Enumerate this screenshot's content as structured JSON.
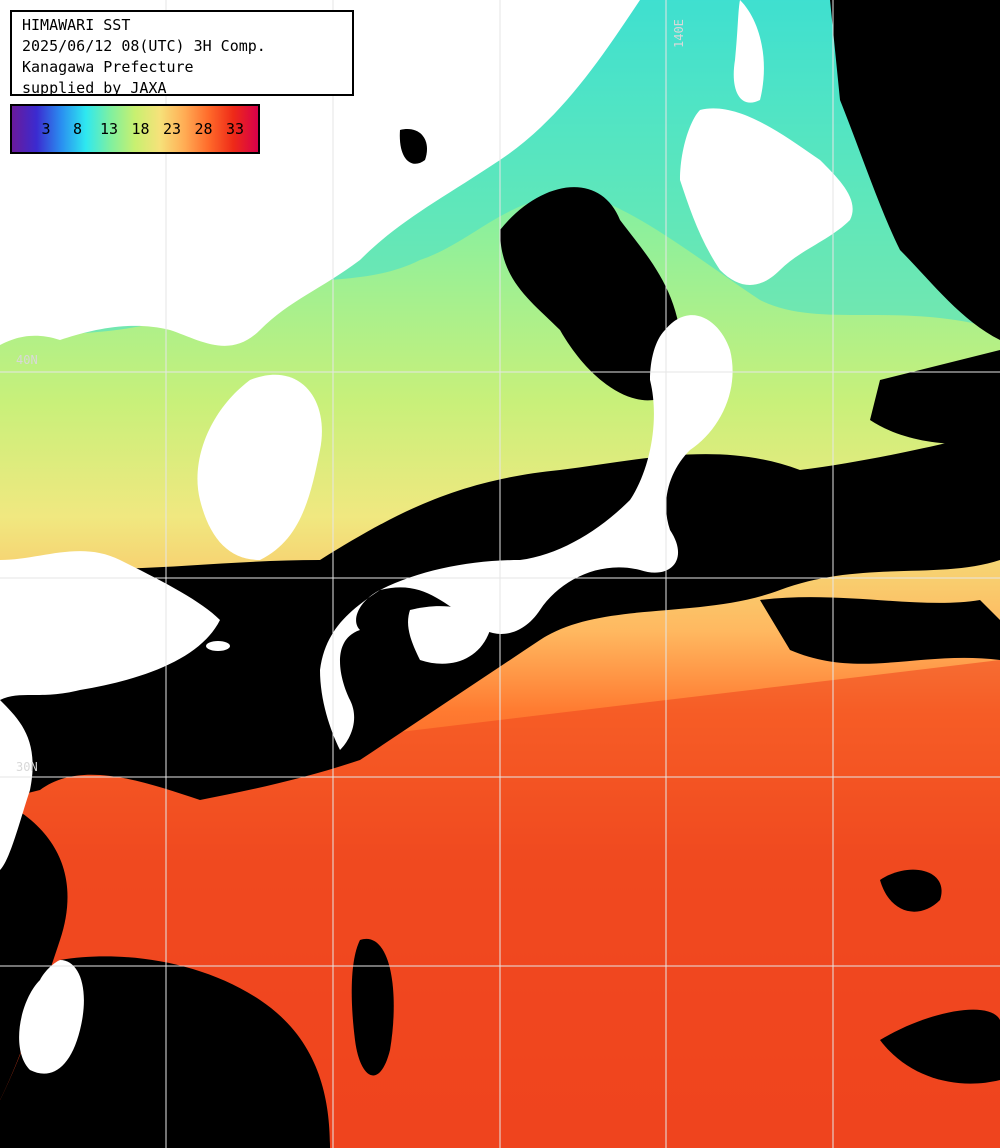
{
  "header": {
    "title": "HIMAWARI SST",
    "datetime": "2025/06/12 08(UTC) 3H Comp.",
    "region": "Kanagawa Prefecture",
    "credit": "supplied by JAXA"
  },
  "scale": {
    "labels": [
      "3",
      "8",
      "13",
      "18",
      "23",
      "28",
      "33"
    ],
    "unit": "",
    "colors": [
      "#6a1a9a",
      "#3b2bd0",
      "#2a8ef0",
      "#2ee8f0",
      "#7ff0a0",
      "#c8f070",
      "#f6e27a",
      "#ffad55",
      "#ff6a2a",
      "#ee2a18",
      "#d8004a"
    ]
  },
  "gridlines": {
    "lat_labels": [
      "40N",
      "30N"
    ],
    "lon_labels": [
      "140E"
    ]
  },
  "colors": {
    "land": "#ffffff",
    "cloud": "#000000",
    "cold_sea": "#3fe0d0",
    "mid_sea": "#b8f07a",
    "warm_sea": "#f8d070",
    "hot_sea": "#f04a20",
    "grid": "#e6e6e6"
  }
}
